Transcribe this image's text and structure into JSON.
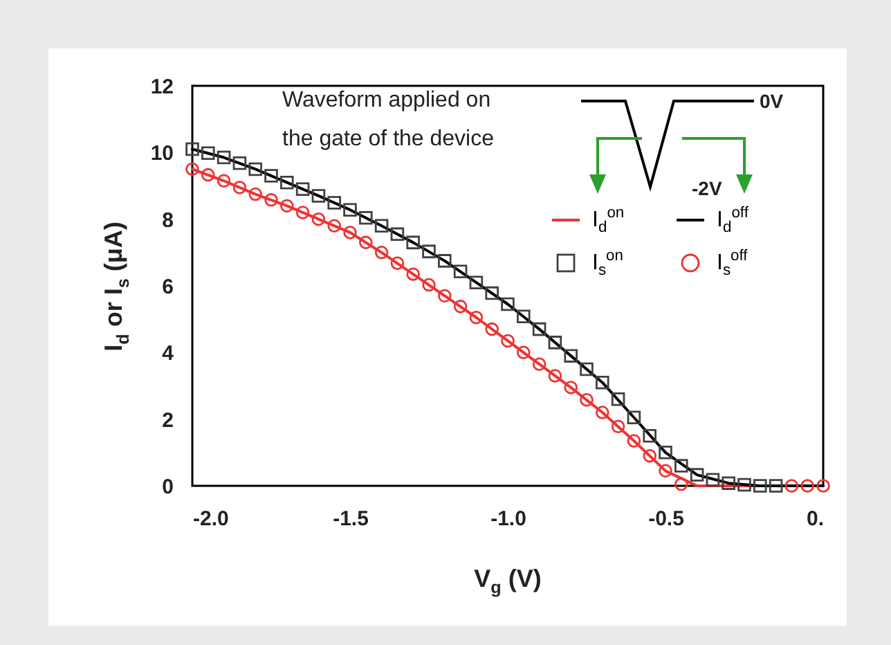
{
  "chart_data": {
    "type": "line",
    "xlabel": "V$_{g}$ (V)",
    "ylabel": "I$_{d}$ or I$_{s}$ (μA)",
    "xlim": [
      -2.0,
      0
    ],
    "xticks": [
      {
        "value": -2.0,
        "label": "-2.0"
      },
      {
        "value": -1.5,
        "label": "-1.5"
      },
      {
        "value": -1.0,
        "label": "-1.0"
      },
      {
        "value": -0.5,
        "label": "-0.5"
      },
      {
        "value": 0,
        "label": "0."
      }
    ],
    "ylim": [
      0,
      12
    ],
    "yticks": [
      0,
      2,
      4,
      6,
      8,
      10,
      12
    ],
    "grid": false,
    "legend": "top right",
    "annotations": [
      "Waveform applied on",
      "the gate of the device",
      "0V",
      "-2V"
    ],
    "series": [
      {
        "name": "I$_{d}$$^{on}$",
        "color": "#ee3333",
        "x": [
          -2.0,
          -1.9,
          -1.8,
          -1.7,
          -1.6,
          -1.5,
          -1.4,
          -1.3,
          -1.2,
          -1.1,
          -1.0,
          -0.9,
          -0.8,
          -0.7,
          -0.6,
          -0.5,
          -0.4,
          -0.3,
          -0.2,
          -0.1,
          0
        ],
        "values": [
          9.5,
          9.15,
          8.75,
          8.4,
          8.0,
          7.6,
          7.0,
          6.35,
          5.7,
          5.05,
          4.35,
          3.65,
          2.95,
          2.2,
          1.35,
          0.45,
          0,
          0,
          0,
          0,
          0
        ]
      },
      {
        "name": "I$_{d}$$^{off}$",
        "color": "#000000",
        "x": [
          -2.0,
          -1.9,
          -1.8,
          -1.7,
          -1.6,
          -1.5,
          -1.4,
          -1.3,
          -1.2,
          -1.1,
          -1.0,
          -0.9,
          -0.8,
          -0.7,
          -0.6,
          -0.5,
          -0.4,
          -0.3,
          -0.2,
          -0.1,
          0
        ],
        "values": [
          10.1,
          9.85,
          9.5,
          9.1,
          8.7,
          8.28,
          7.8,
          7.3,
          6.75,
          6.1,
          5.45,
          4.7,
          3.9,
          3.1,
          2.05,
          1.0,
          0.33,
          0.08,
          0,
          0,
          0
        ]
      },
      {
        "name": "I$_{s}$$^{on}$",
        "type": "scatter",
        "marker": "square",
        "color": "#404040",
        "x": [
          -2.0,
          -1.95,
          -1.9,
          -1.85,
          -1.8,
          -1.75,
          -1.7,
          -1.65,
          -1.6,
          -1.55,
          -1.5,
          -1.45,
          -1.4,
          -1.35,
          -1.3,
          -1.25,
          -1.2,
          -1.15,
          -1.1,
          -1.05,
          -1.0,
          -0.95,
          -0.9,
          -0.85,
          -0.8,
          -0.75,
          -0.7,
          -0.65,
          -0.6,
          -0.55,
          -0.5,
          -0.45,
          -0.4,
          -0.35,
          -0.3,
          -0.25,
          -0.2,
          -0.15
        ],
        "values": [
          10.1,
          9.98,
          9.85,
          9.68,
          9.5,
          9.3,
          9.1,
          8.9,
          8.7,
          8.49,
          8.28,
          8.04,
          7.8,
          7.55,
          7.3,
          7.03,
          6.75,
          6.43,
          6.1,
          5.78,
          5.45,
          5.08,
          4.7,
          4.3,
          3.9,
          3.5,
          3.1,
          2.6,
          2.05,
          1.5,
          1.0,
          0.6,
          0.33,
          0.18,
          0.08,
          0.03,
          0,
          0
        ]
      },
      {
        "name": "I$_{s}$$^{off}$",
        "type": "scatter",
        "marker": "circle",
        "color": "#ee3333",
        "x": [
          -2.0,
          -1.95,
          -1.9,
          -1.85,
          -1.8,
          -1.75,
          -1.7,
          -1.65,
          -1.6,
          -1.55,
          -1.5,
          -1.45,
          -1.4,
          -1.35,
          -1.3,
          -1.25,
          -1.2,
          -1.15,
          -1.1,
          -1.05,
          -1.0,
          -0.95,
          -0.9,
          -0.85,
          -0.8,
          -0.75,
          -0.7,
          -0.65,
          -0.6,
          -0.55,
          -0.5,
          -0.45,
          -0.1,
          -0.05,
          0
        ],
        "values": [
          9.5,
          9.33,
          9.15,
          8.95,
          8.75,
          8.58,
          8.4,
          8.2,
          8.0,
          7.8,
          7.6,
          7.3,
          7.0,
          6.68,
          6.35,
          6.03,
          5.7,
          5.38,
          5.05,
          4.7,
          4.35,
          4.0,
          3.65,
          3.3,
          2.95,
          2.58,
          2.2,
          1.78,
          1.35,
          0.9,
          0.45,
          0.05,
          0,
          0,
          0
        ]
      }
    ]
  }
}
